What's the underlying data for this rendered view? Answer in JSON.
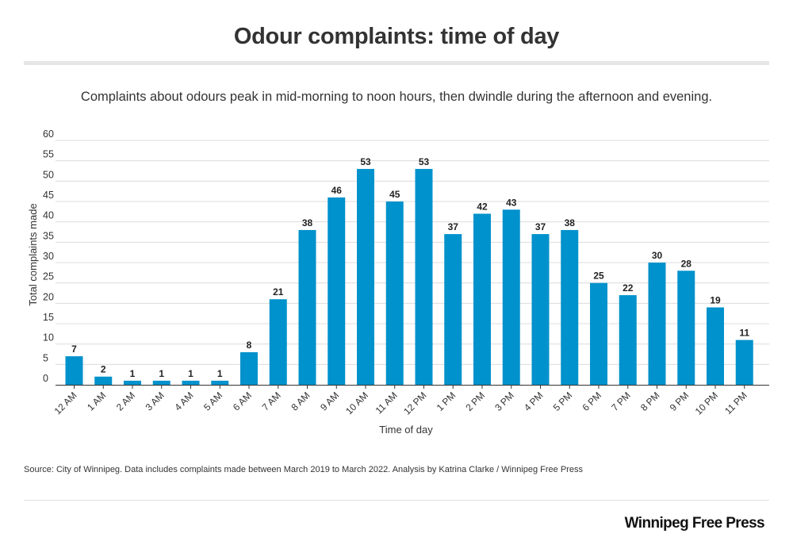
{
  "header": {
    "title": "Odour complaints: time of day",
    "subtitle": "Complaints about odours peak in mid-morning to noon hours, then dwindle during the afternoon and evening."
  },
  "chart_data": {
    "type": "bar",
    "title": "Odour complaints: time of day",
    "subtitle": "Complaints about odours peak in mid-morning to noon hours, then dwindle during the afternoon and evening.",
    "xlabel": "Time of day",
    "ylabel": "Total complaints made",
    "ylim": [
      0,
      60
    ],
    "yticks": [
      0,
      5,
      10,
      15,
      20,
      25,
      30,
      35,
      40,
      45,
      50,
      55,
      60
    ],
    "grid": true,
    "legend": "none",
    "bar_color": "#0092cc",
    "categories": [
      "12 AM",
      "1 AM",
      "2 AM",
      "3 AM",
      "4 AM",
      "5 AM",
      "6 AM",
      "7 AM",
      "8 AM",
      "9 AM",
      "10 AM",
      "11 AM",
      "12 PM",
      "1 PM",
      "2 PM",
      "3 PM",
      "4 PM",
      "5 PM",
      "6 PM",
      "7 PM",
      "8 PM",
      "9 PM",
      "10 PM",
      "11 PM"
    ],
    "values": [
      7,
      2,
      1,
      1,
      1,
      1,
      8,
      21,
      38,
      46,
      53,
      45,
      53,
      37,
      42,
      43,
      37,
      38,
      25,
      22,
      30,
      28,
      19,
      11
    ]
  },
  "footer": {
    "source": "Source: City of Winnipeg. Data includes complaints made between March 2019 to March 2022.  Analysis by Katrina Clarke / Winnipeg Free Press",
    "brand": "Winnipeg Free Press"
  }
}
